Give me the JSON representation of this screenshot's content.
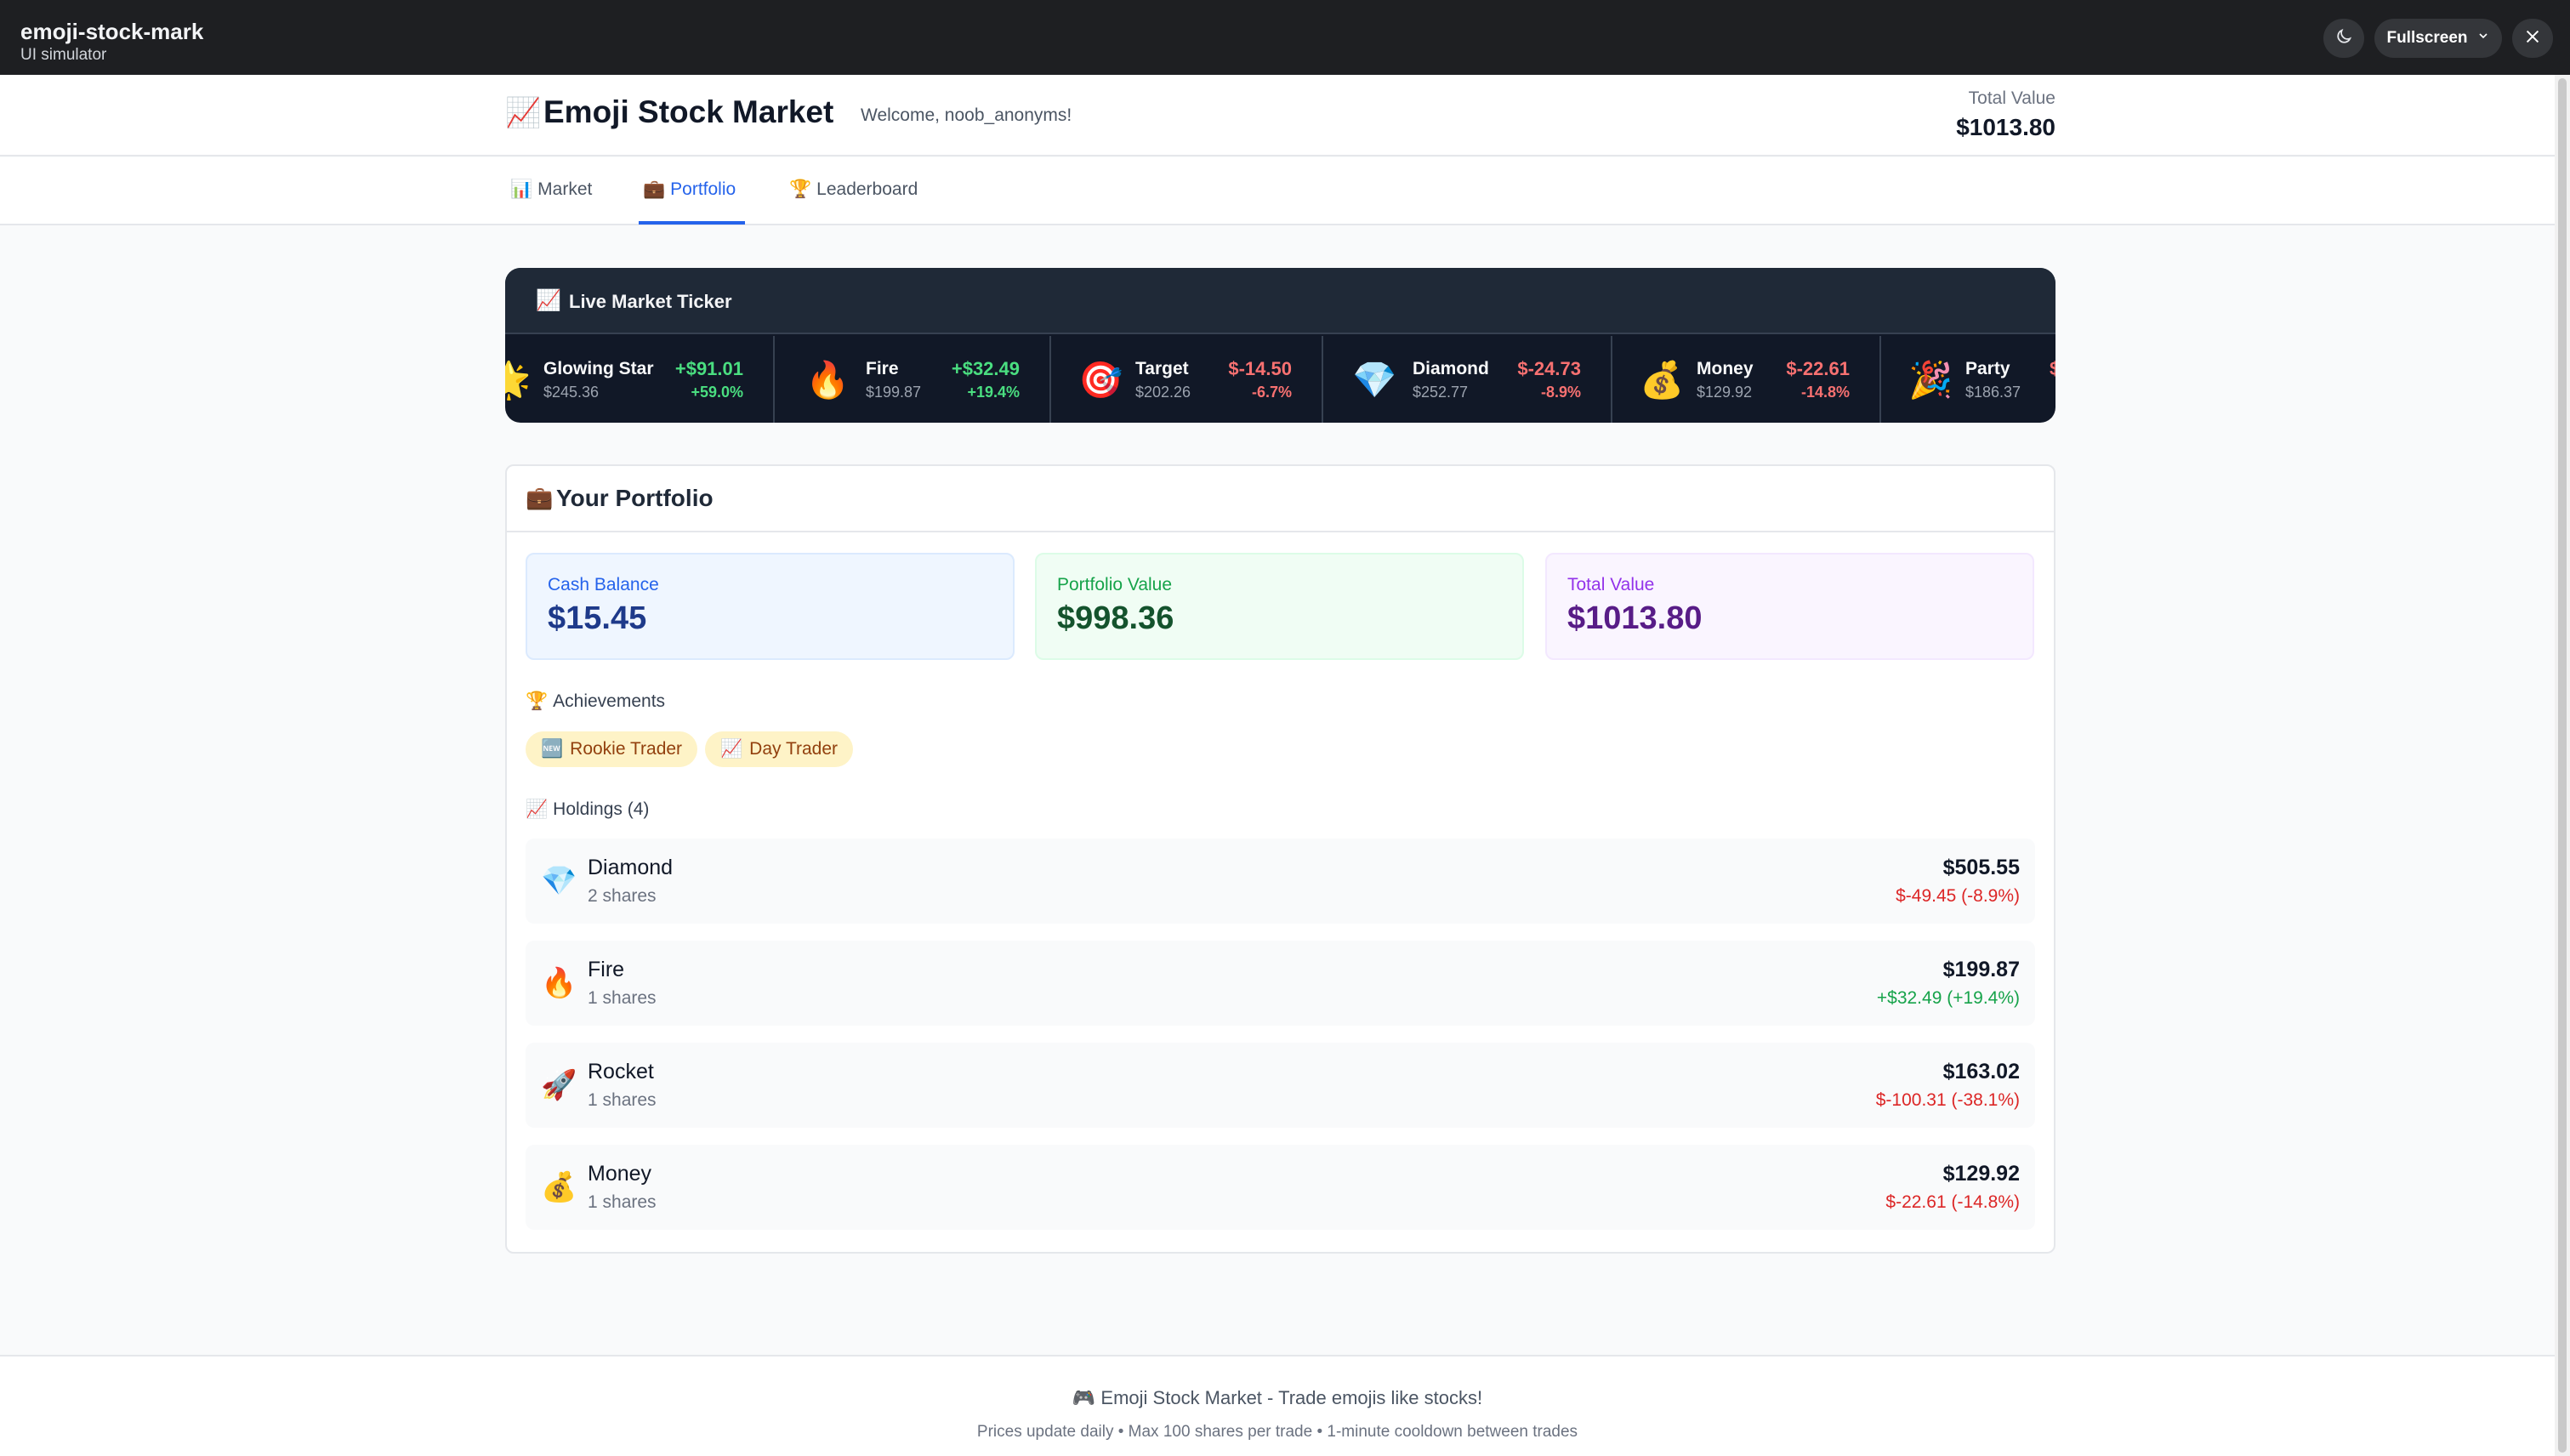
{
  "simulator": {
    "app_name": "emoji-stock-mark",
    "subtitle": "UI simulator",
    "theme_icon": "moon-icon",
    "fullscreen_label": "Fullscreen",
    "close_icon": "close-icon"
  },
  "header": {
    "title_emoji": "📈",
    "title": "Emoji Stock Market",
    "welcome": "Welcome, noob_anonyms!",
    "total_value_label": "Total Value",
    "total_value": "$1013.80"
  },
  "tabs": [
    {
      "emoji": "📊",
      "label": "Market",
      "active": false
    },
    {
      "emoji": "💼",
      "label": "Portfolio",
      "active": true
    },
    {
      "emoji": "🏆",
      "label": "Leaderboard",
      "active": false
    }
  ],
  "ticker": {
    "title_emoji": "📈",
    "title": "Live Market Ticker",
    "items": [
      {
        "emoji": "🌟",
        "name": "Glowing Star",
        "price": "$245.36",
        "change": "+$91.01",
        "pct": "+59.0%",
        "direction": "up"
      },
      {
        "emoji": "🔥",
        "name": "Fire",
        "price": "$199.87",
        "change": "+$32.49",
        "pct": "+19.4%",
        "direction": "up"
      },
      {
        "emoji": "🎯",
        "name": "Target",
        "price": "$202.26",
        "change": "$-14.50",
        "pct": "-6.7%",
        "direction": "down"
      },
      {
        "emoji": "💎",
        "name": "Diamond",
        "price": "$252.77",
        "change": "$-24.73",
        "pct": "-8.9%",
        "direction": "down"
      },
      {
        "emoji": "💰",
        "name": "Money",
        "price": "$129.92",
        "change": "$-22.61",
        "pct": "-14.8%",
        "direction": "down"
      },
      {
        "emoji": "🎉",
        "name": "Party",
        "price": "$186.37",
        "change": "$",
        "pct": "",
        "direction": "down"
      }
    ]
  },
  "portfolio": {
    "title_emoji": "💼",
    "title": "Your Portfolio",
    "cash_label": "Cash Balance",
    "cash_value": "$15.45",
    "portfolio_label": "Portfolio Value",
    "portfolio_value": "$998.36",
    "total_label": "Total Value",
    "total_value": "$1013.80",
    "achievements_emoji": "🏆",
    "achievements_label": "Achievements",
    "achievements": [
      {
        "emoji": "🆕",
        "label": "Rookie Trader"
      },
      {
        "emoji": "📈",
        "label": "Day Trader"
      }
    ],
    "holdings_emoji": "📈",
    "holdings_label": "Holdings (4)",
    "holdings": [
      {
        "emoji": "💎",
        "name": "Diamond",
        "shares": "2 shares",
        "value": "$505.55",
        "change": "$-49.45 (-8.9%)",
        "direction": "down"
      },
      {
        "emoji": "🔥",
        "name": "Fire",
        "shares": "1 shares",
        "value": "$199.87",
        "change": "+$32.49 (+19.4%)",
        "direction": "up"
      },
      {
        "emoji": "🚀",
        "name": "Rocket",
        "shares": "1 shares",
        "value": "$163.02",
        "change": "$-100.31 (-38.1%)",
        "direction": "down"
      },
      {
        "emoji": "💰",
        "name": "Money",
        "shares": "1 shares",
        "value": "$129.92",
        "change": "$-22.61 (-14.8%)",
        "direction": "down"
      }
    ]
  },
  "footer": {
    "emoji": "🎮",
    "main": "Emoji Stock Market - Trade emojis like stocks!",
    "sub": "Prices update daily • Max 100 shares per trade • 1-minute cooldown between trades"
  },
  "colors": {
    "accent": "#2563eb",
    "up": "#16a34a",
    "down": "#dc2626",
    "ticker_bg": "#111827"
  }
}
